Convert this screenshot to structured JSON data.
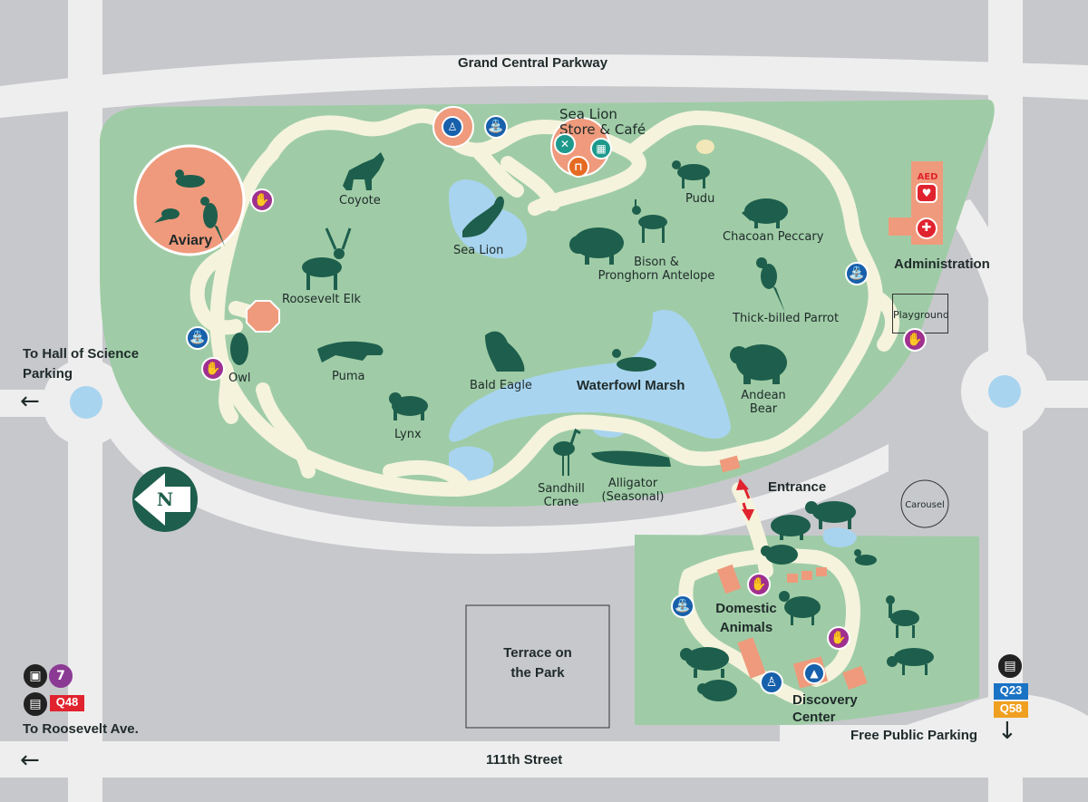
{
  "roads": {
    "north": "Grand Central Parkway",
    "south": "111th Street",
    "west_top": "To Hall of Science",
    "west_bottom": "Parking",
    "transit_caption": "To Roosevelt Ave.",
    "parking": "Free Public Parking"
  },
  "transit": {
    "subway_line": "7",
    "bus_west": "Q48",
    "bus_east_1": "Q23",
    "bus_east_2": "Q58"
  },
  "areas": {
    "aviary": "Aviary",
    "sea_lion_store_1": "Sea Lion",
    "sea_lion_store_2": "Store & Café",
    "administration": "Administration",
    "playground": "Playground",
    "waterfowl_marsh": "Waterfowl Marsh",
    "entrance": "Entrance",
    "carousel": "Carousel",
    "domestic_1": "Domestic",
    "domestic_2": "Animals",
    "discovery_1": "Discovery",
    "discovery_2": "Center",
    "terrace_1": "Terrace on",
    "terrace_2": "the Park",
    "aed": "AED"
  },
  "animals": {
    "coyote": "Coyote",
    "pudu": "Pudu",
    "sea_lion": "Sea Lion",
    "chacoan_peccary": "Chacoan Peccary",
    "bison_1": "Bison &",
    "bison_2": "Pronghorn Antelope",
    "roosevelt_elk": "Roosevelt Elk",
    "thick_billed_parrot": "Thick-billed Parrot",
    "owl": "Owl",
    "puma": "Puma",
    "bald_eagle": "Bald Eagle",
    "andean_bear_1": "Andean",
    "andean_bear_2": "Bear",
    "lynx": "Lynx",
    "sandhill_1": "Sandhill",
    "sandhill_2": "Crane",
    "alligator_1": "Alligator",
    "alligator_2": "(Seasonal)"
  },
  "compass": "N",
  "colors": {
    "park": "#9fcca6",
    "path": "#f5f3dc",
    "road": "#eeeeee",
    "water": "#a8d4ef",
    "building": "#ef9a7c",
    "silhouette": "#1e5e4c",
    "facility_blue": "#1760ab",
    "hand_purple": "#a0308f",
    "bus_red": "#e0232e",
    "bus_blue": "#1a73c4",
    "bus_orange": "#f0a020"
  },
  "icons": {
    "restroom": "restroom-icon",
    "accessible": "wheelchair-icon",
    "fountain": "water-fountain-icon",
    "petting": "hand-icon",
    "food": "food-icon",
    "gift": "gift-icon",
    "picnic": "picnic-icon",
    "first_aid": "first-aid-icon",
    "school": "education-icon",
    "bus": "bus-icon",
    "train": "train-icon"
  }
}
